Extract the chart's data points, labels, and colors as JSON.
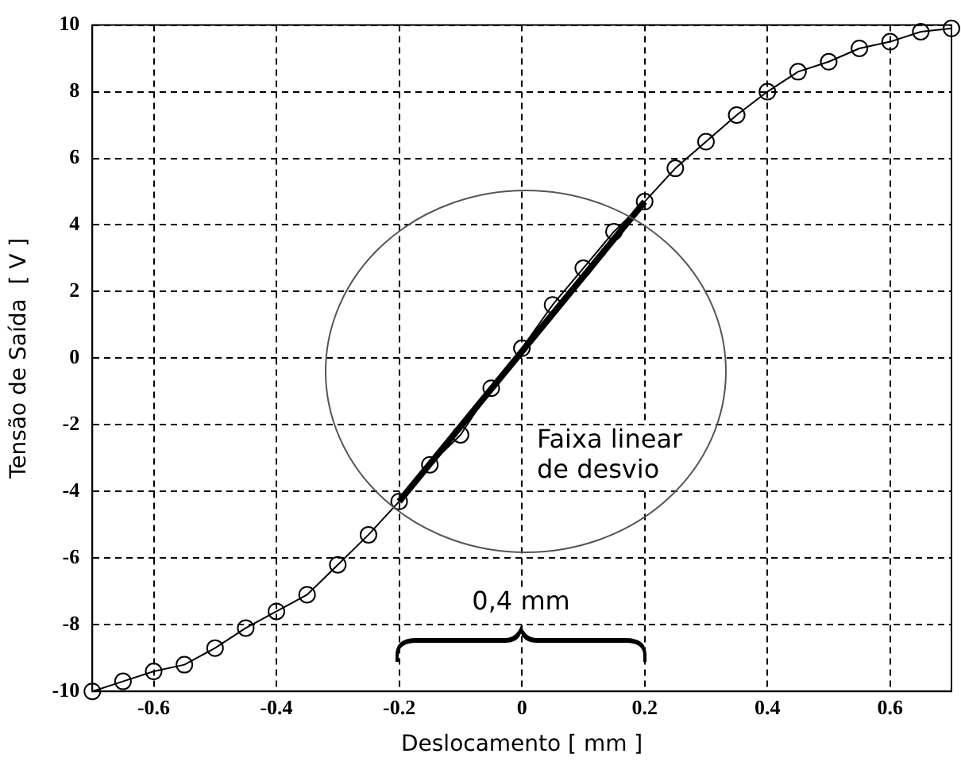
{
  "chart_data": {
    "type": "line",
    "xlabel": "Deslocamento [ mm ]",
    "ylabel": "Tensão de Saída  [ V ]",
    "xlim": [
      -0.7,
      0.7
    ],
    "xticks": [
      -0.6,
      -0.4,
      -0.2,
      0,
      0.2,
      0.4,
      0.6
    ],
    "ylim": [
      -10,
      10
    ],
    "yticks": [
      -10,
      -8,
      -6,
      -4,
      -2,
      0,
      2,
      4,
      6,
      8,
      10
    ],
    "grid": true,
    "marker": "circle",
    "legend": false,
    "series": [
      {
        "color": "#000000",
        "x": [
          -0.7,
          -0.65,
          -0.6,
          -0.55,
          -0.5,
          -0.45,
          -0.4,
          -0.35,
          -0.3,
          -0.25,
          -0.2,
          -0.15,
          -0.1,
          -0.05,
          0,
          0.05,
          0.1,
          0.15,
          0.2,
          0.25,
          0.3,
          0.35,
          0.4,
          0.45,
          0.5,
          0.55,
          0.6,
          0.65,
          0.7
        ],
        "values": [
          -10,
          -9.7,
          -9.4,
          -9.2,
          -8.7,
          -8.1,
          -7.6,
          -7.1,
          -6.2,
          -5.3,
          -4.3,
          -3.2,
          -2.3,
          -0.9,
          0.3,
          1.6,
          2.7,
          3.8,
          4.7,
          5.7,
          6.5,
          7.3,
          8.0,
          8.6,
          8.9,
          9.3,
          9.5,
          9.8,
          9.9
        ]
      },
      {
        "type": "line",
        "color": "#000000",
        "marker": "none",
        "x": [
          -0.2,
          0.2
        ],
        "values": [
          -4.3,
          4.7
        ]
      }
    ],
    "annotations": [
      "Faixa linear de desvio",
      "0,4 mm"
    ]
  }
}
